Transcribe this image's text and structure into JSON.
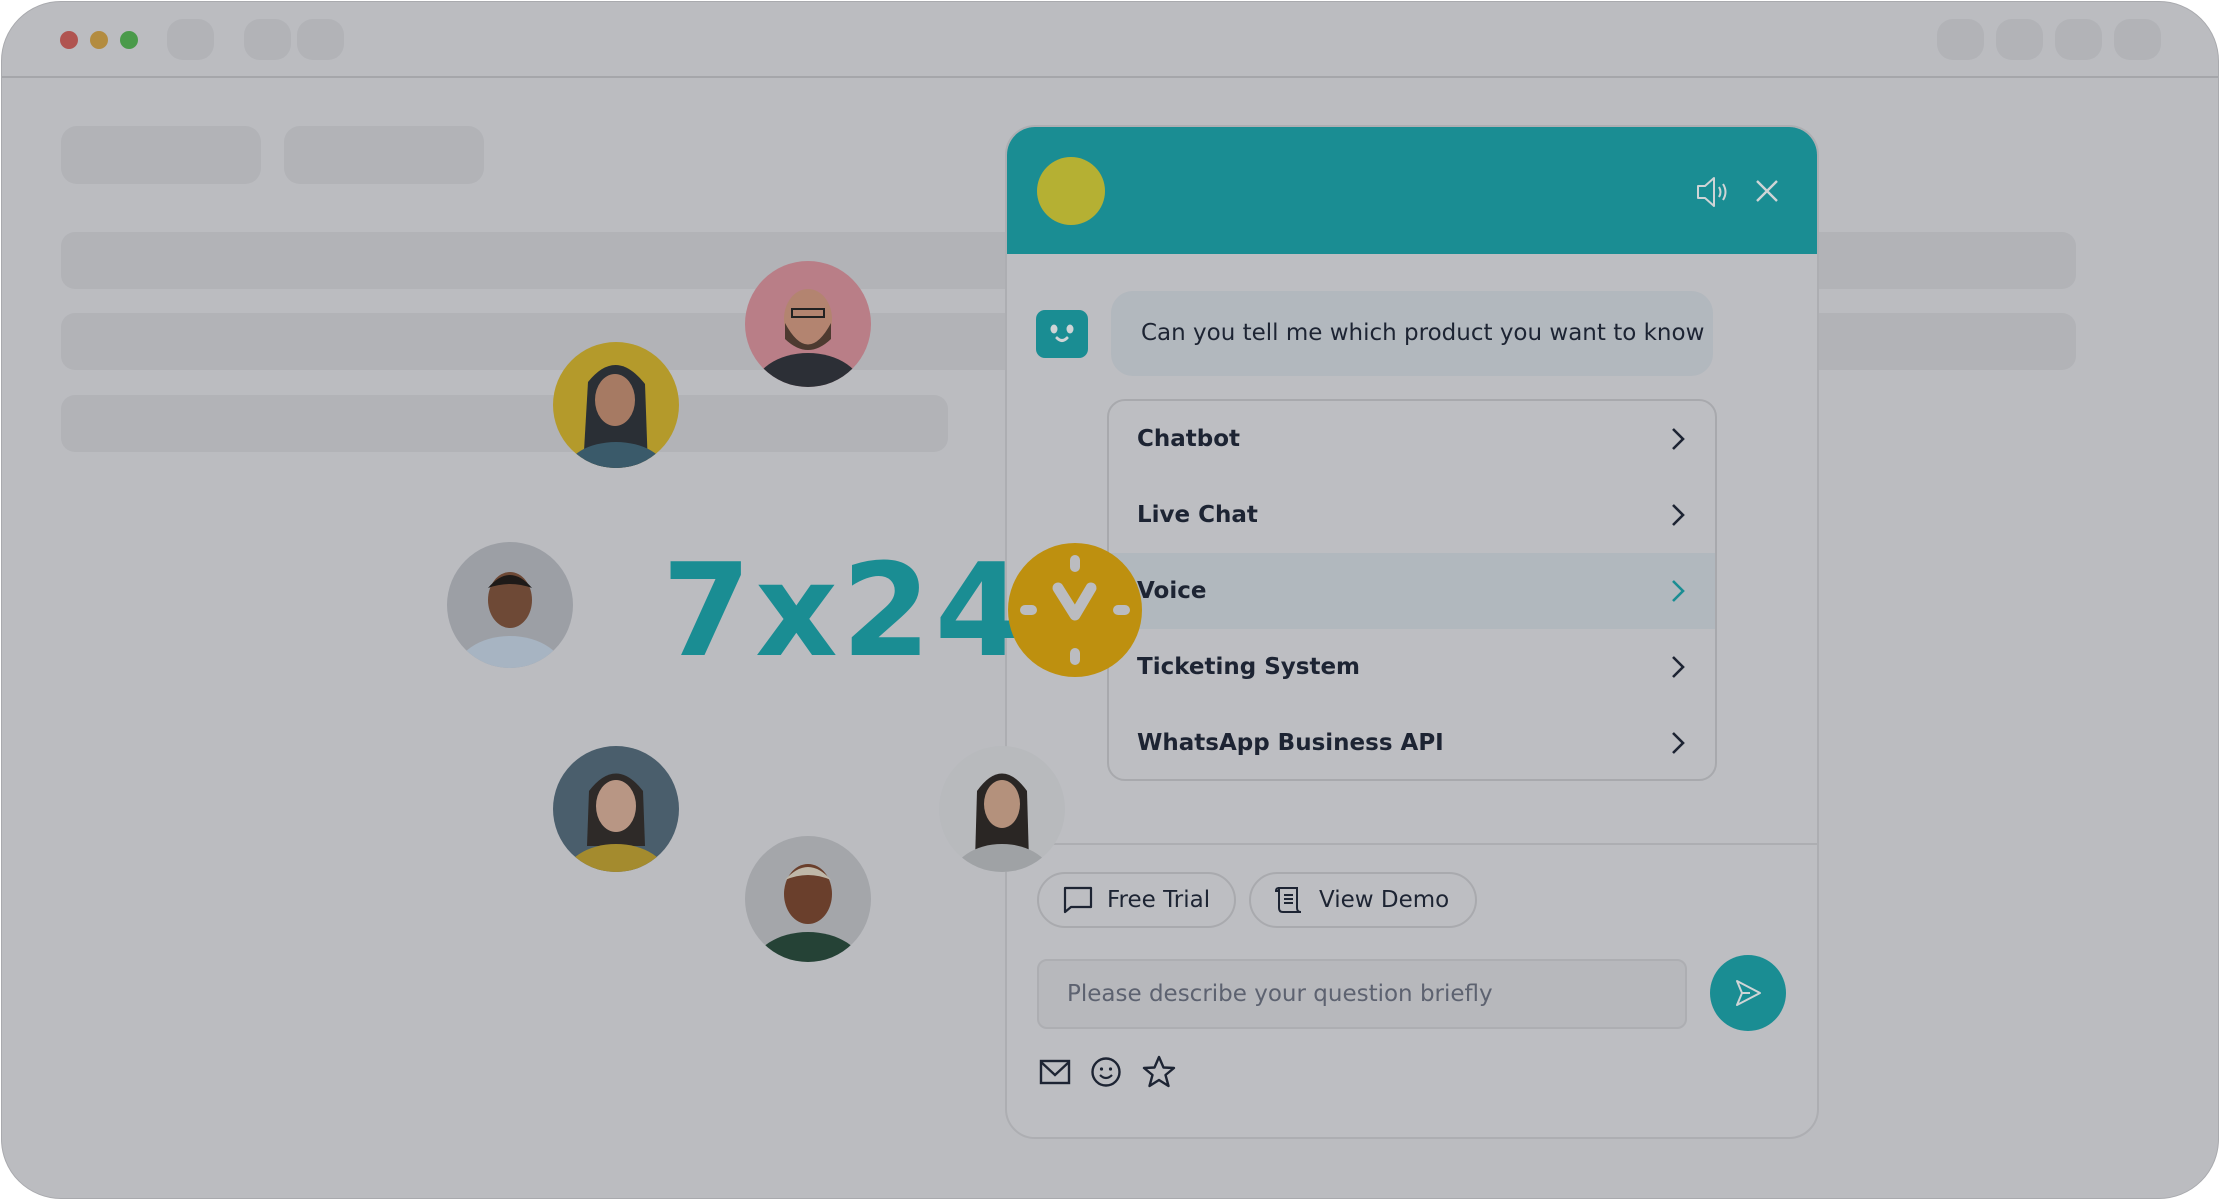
{
  "window": {
    "traffic_lights": {
      "close": "#b05450",
      "minimize": "#b38c40",
      "maximize": "#4a9a4a"
    }
  },
  "hero": {
    "availability_text": "7x24",
    "clock_icon": "clock-icon",
    "clock_color": "#be900f"
  },
  "chat_widget": {
    "header_color": "#1a8d93",
    "logo_color": "#b5b033",
    "header_icons": [
      "speaker-icon",
      "close-icon"
    ],
    "bot_message": "Can you tell me which product you want to know",
    "options": [
      {
        "label": "Chatbot",
        "highlighted": false
      },
      {
        "label": "Live Chat",
        "highlighted": false
      },
      {
        "label": "Voice",
        "highlighted": true
      },
      {
        "label": "Ticketing System",
        "highlighted": false
      },
      {
        "label": "WhatsApp Business API",
        "highlighted": false
      }
    ],
    "quick_actions": [
      {
        "label": "Free Trial",
        "icon": "chat-bubble-icon"
      },
      {
        "label": "View Demo",
        "icon": "scroll-icon"
      }
    ],
    "input": {
      "value": "",
      "placeholder": "Please describe your question briefly"
    },
    "send_icon": "send-icon",
    "footer_tools": [
      "mail-icon",
      "emoji-icon",
      "star-icon"
    ]
  }
}
